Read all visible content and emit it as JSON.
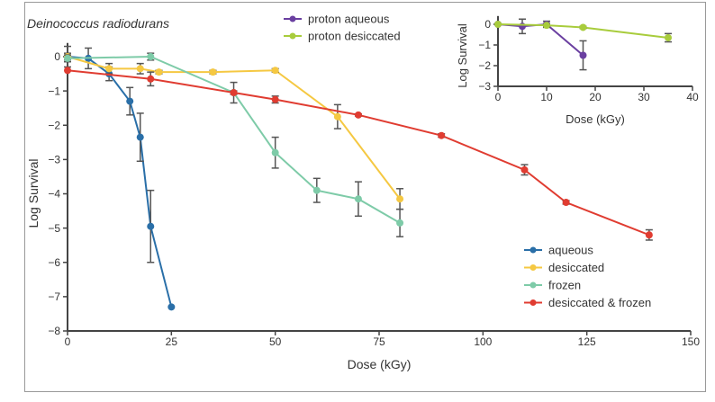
{
  "chart_data": [
    {
      "type": "line",
      "title": "Deinococcus radiodurans",
      "xlabel": "Dose (kGy)",
      "ylabel": "Log Survival",
      "xlim": [
        0,
        150
      ],
      "ylim": [
        -8,
        0.4
      ],
      "xticks": [
        0,
        25,
        50,
        75,
        100,
        125,
        150
      ],
      "yticks": [
        0,
        -1,
        -2,
        -3,
        -4,
        -5,
        -6,
        -7,
        -8
      ],
      "grid": false,
      "legend_placement": "bottom-right",
      "series": [
        {
          "name": "aqueous",
          "color": "#2a6fa8",
          "x": [
            0,
            5,
            10,
            15,
            17.5,
            20,
            25
          ],
          "y": [
            0,
            -0.05,
            -0.5,
            -1.3,
            -2.35,
            -4.95,
            -7.3
          ],
          "err": [
            0.3,
            0.3,
            0.2,
            0.4,
            0.7,
            1.05,
            0
          ]
        },
        {
          "name": "desiccated",
          "color": "#f5c842",
          "x": [
            0,
            10,
            17.5,
            22,
            35,
            50,
            65,
            80
          ],
          "y": [
            0,
            -0.35,
            -0.35,
            -0.45,
            -0.45,
            -0.4,
            -1.75,
            -4.15
          ],
          "err": [
            0.1,
            0.15,
            0.15,
            0.05,
            0.05,
            0.05,
            0.35,
            0.3
          ]
        },
        {
          "name": "frozen",
          "color": "#7ecba8",
          "x": [
            0,
            20,
            40,
            50,
            60,
            70,
            80
          ],
          "y": [
            -0.05,
            0,
            -1.05,
            -2.8,
            -3.9,
            -4.15,
            -4.85
          ],
          "err": [
            0.1,
            0.1,
            0.3,
            0.45,
            0.35,
            0.5,
            0.4
          ]
        },
        {
          "name": "desiccated & frozen",
          "color": "#e03c31",
          "x": [
            0,
            20,
            40,
            50,
            70,
            90,
            110,
            120,
            140
          ],
          "y": [
            -0.4,
            -0.65,
            -1.05,
            -1.25,
            -1.7,
            -2.3,
            -3.3,
            -4.25,
            -5.2
          ],
          "err": [
            0,
            0.2,
            0.05,
            0.1,
            0.03,
            0.05,
            0.15,
            0.05,
            0.15
          ]
        }
      ]
    },
    {
      "type": "line",
      "xlabel": "Dose (kGy)",
      "ylabel": "Log Survival",
      "xlim": [
        0,
        40
      ],
      "ylim": [
        -3,
        0.4
      ],
      "xticks": [
        0,
        10,
        20,
        30,
        40
      ],
      "yticks": [
        0,
        -1,
        -2,
        -3
      ],
      "grid": false,
      "legend_placement": "top-left (outside)",
      "series": [
        {
          "name": "proton aqueous",
          "color": "#6a3fa0",
          "x": [
            0,
            5,
            10,
            17.5
          ],
          "y": [
            0,
            -0.1,
            0,
            -1.5
          ],
          "err": [
            0,
            0.35,
            0.15,
            0.7
          ]
        },
        {
          "name": "proton desiccated",
          "color": "#a8cc3c",
          "x": [
            0,
            10,
            17.5,
            35
          ],
          "y": [
            0,
            -0.05,
            -0.15,
            -0.65
          ],
          "err": [
            0,
            0.05,
            0.05,
            0.2
          ]
        }
      ]
    }
  ]
}
